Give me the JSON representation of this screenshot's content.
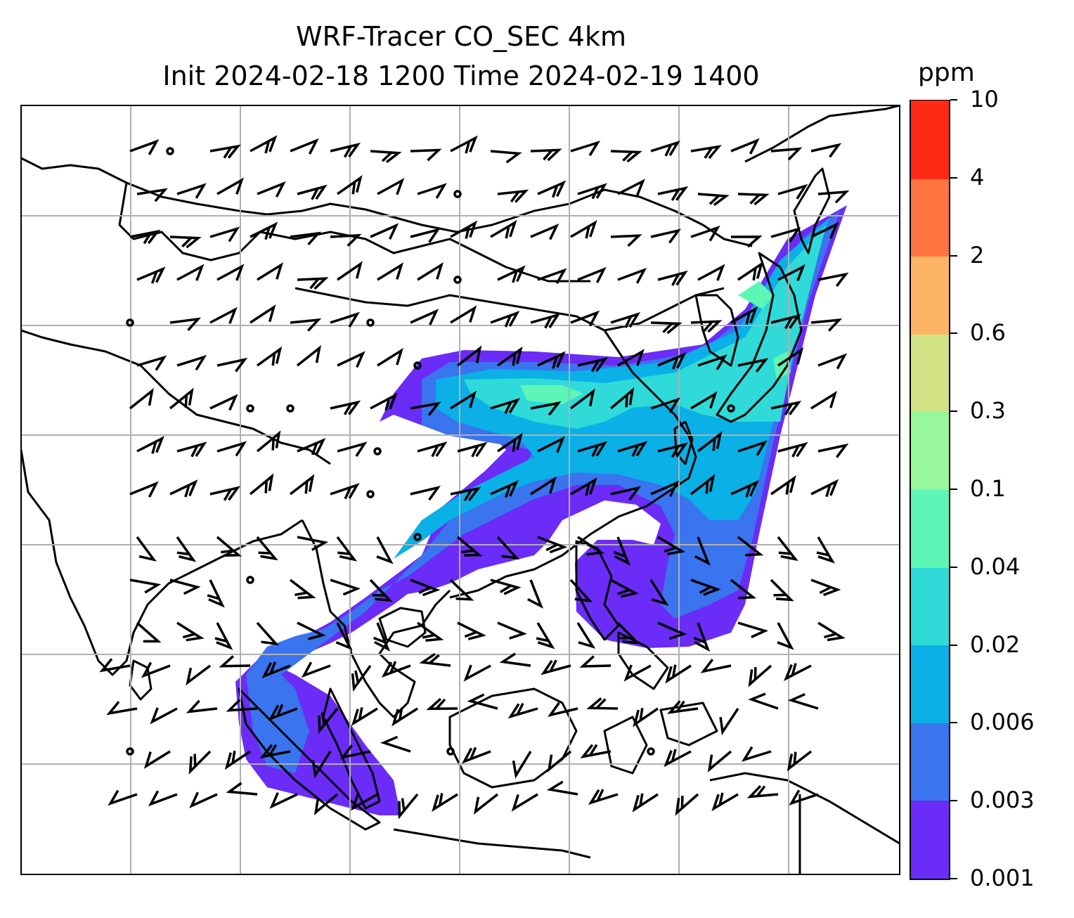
{
  "title": {
    "line1": "WRF-Tracer CO_SEC 4km",
    "line2": "Init 2024-02-18 1200 Time 2024-02-19 1400"
  },
  "colorbar": {
    "unit": "ppm",
    "levels": [
      "0.001",
      "0.003",
      "0.006",
      "0.02",
      "0.04",
      "0.1",
      "0.3",
      "0.6",
      "2",
      "4",
      "10"
    ],
    "colors": [
      "#6a2cf6",
      "#3a74ee",
      "#0ab0e6",
      "#2fdad8",
      "#5df6b7",
      "#97f79a",
      "#d1e284",
      "#fdb565",
      "#ff7440",
      "#ff2a15"
    ]
  },
  "map": {
    "gridlines": true,
    "features": [
      "coastlines",
      "country borders",
      "wind barbs",
      "CO tracer concentration"
    ],
    "barb_color": "#000000"
  }
}
